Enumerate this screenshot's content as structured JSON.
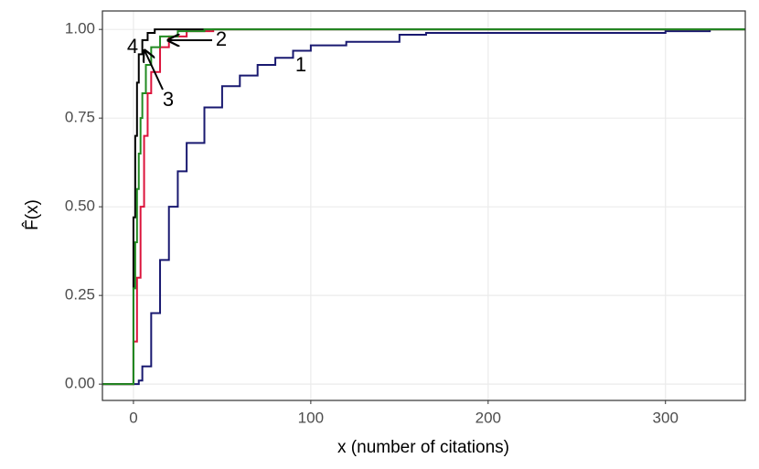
{
  "chart_data": {
    "type": "line",
    "step": true,
    "x_label": "x (number of citations)",
    "y_label": "F̂(x)",
    "xlim": [
      -17.5,
      345
    ],
    "ylim": [
      -0.046,
      1.052
    ],
    "xticks": [
      0,
      100,
      200,
      300
    ],
    "yticks": [
      {
        "value": 0,
        "label": "0.00"
      },
      {
        "value": 0.25,
        "label": "0.25"
      },
      {
        "value": 0.5,
        "label": "0.50"
      },
      {
        "value": 0.75,
        "label": "0.75"
      },
      {
        "value": 1,
        "label": "1.00"
      }
    ],
    "grid": true,
    "series": [
      {
        "name": "1",
        "color": "#191970",
        "x": [
          3,
          5,
          10,
          15,
          20,
          25,
          30,
          40,
          50,
          60,
          70,
          80,
          90,
          100,
          120,
          150,
          165,
          300,
          325
        ],
        "values": [
          0.01,
          0.05,
          0.2,
          0.35,
          0.5,
          0.6,
          0.68,
          0.78,
          0.84,
          0.87,
          0.9,
          0.92,
          0.94,
          0.955,
          0.965,
          0.985,
          0.99,
          0.995,
          1
        ]
      },
      {
        "name": "2",
        "color": "#dc143c",
        "x": [
          0,
          2,
          4,
          6,
          8,
          10,
          15,
          20,
          30,
          45
        ],
        "values": [
          0.12,
          0.3,
          0.5,
          0.7,
          0.82,
          0.88,
          0.95,
          0.98,
          0.995,
          1
        ]
      },
      {
        "name": "3",
        "color": "#228b22",
        "x": [
          0,
          1,
          2,
          3,
          4,
          5,
          7,
          10,
          15,
          25,
          40
        ],
        "values": [
          0.27,
          0.4,
          0.55,
          0.65,
          0.75,
          0.82,
          0.9,
          0.95,
          0.98,
          0.995,
          1
        ]
      },
      {
        "name": "4",
        "color": "#000000",
        "x": [
          0,
          1,
          2,
          3,
          5,
          8,
          12
        ],
        "values": [
          0.47,
          0.7,
          0.85,
          0.93,
          0.97,
          0.99,
          1
        ]
      }
    ]
  }
}
